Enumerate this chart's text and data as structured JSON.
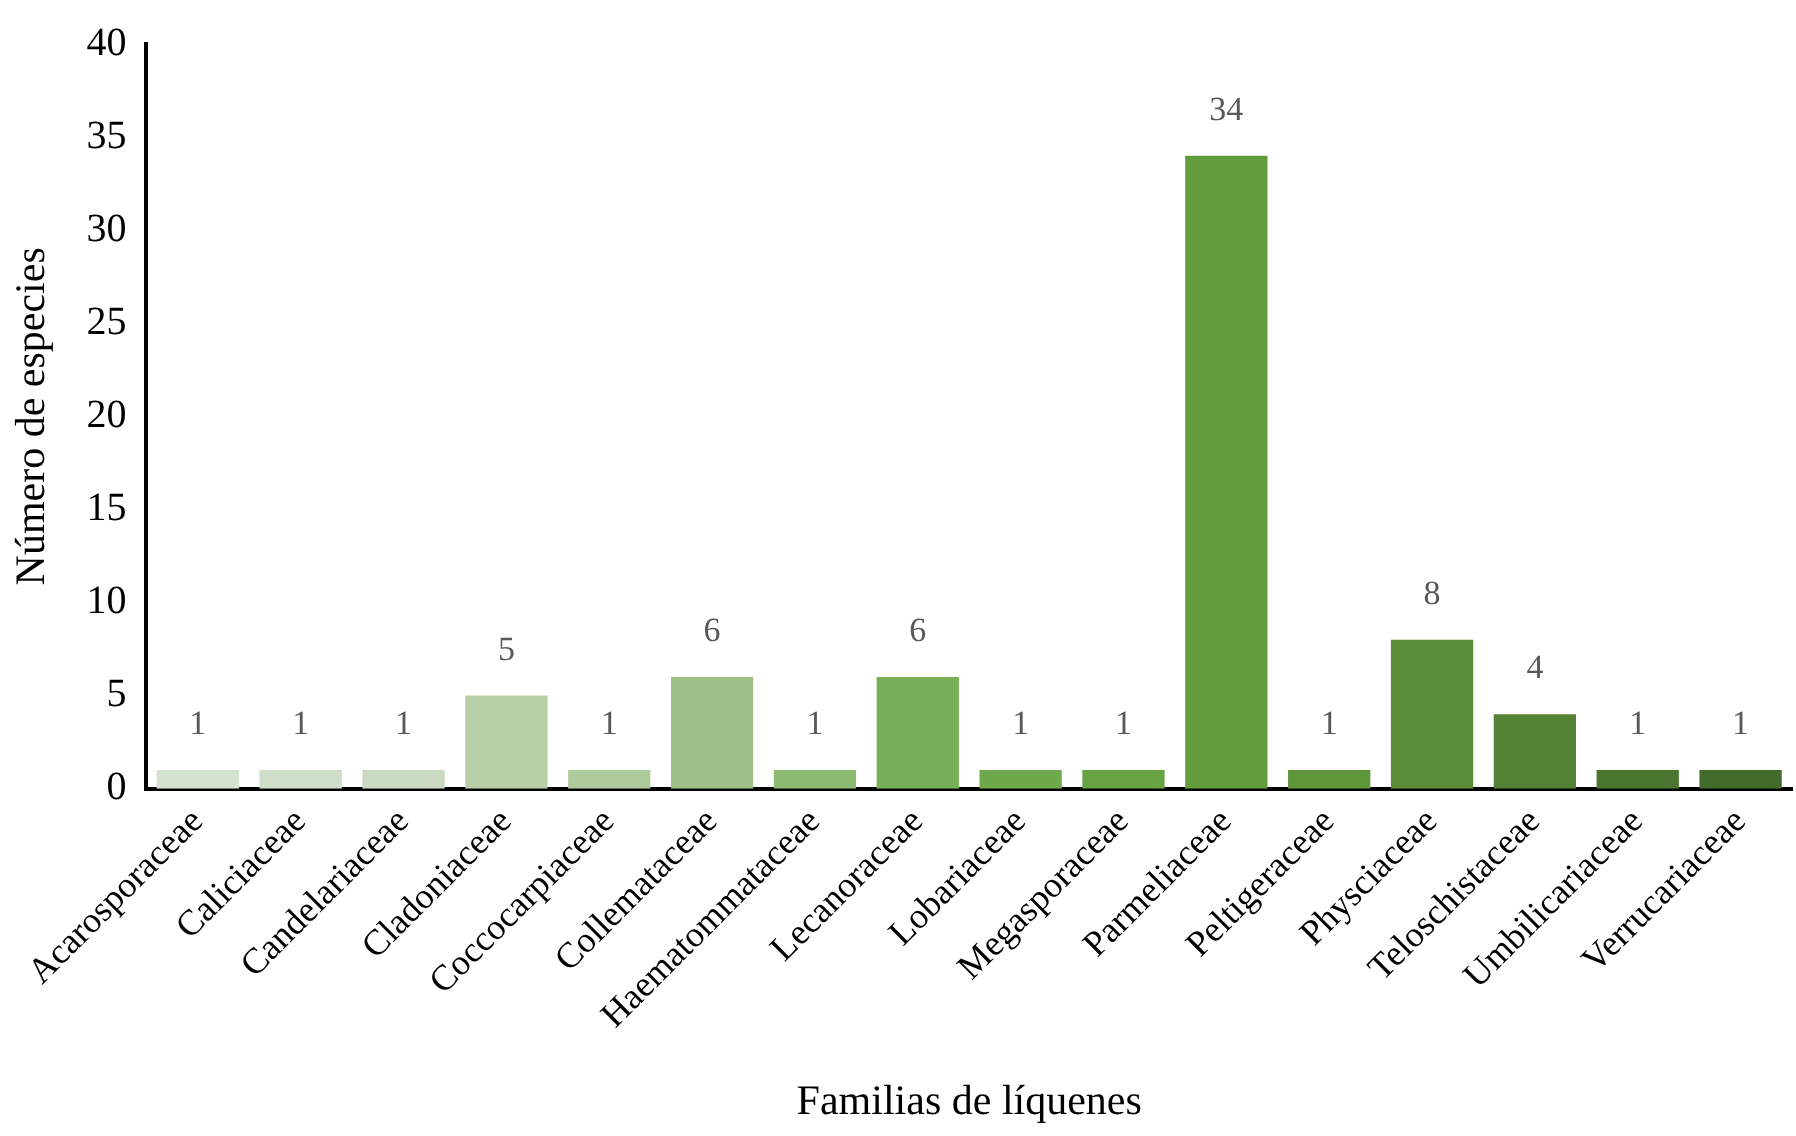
{
  "chart_data": {
    "type": "bar",
    "xlabel": "Familias de líquenes",
    "ylabel": "Número de especies",
    "categories": [
      "Acarosporaceae",
      "Caliciaceae",
      "Candelariaceae",
      "Cladoniaceae",
      "Coccocarpiaceae",
      "Collemataceae",
      "Haematommataceae",
      "Lecanoraceae",
      "Lobariaceae",
      "Megasporaceae",
      "Parmeliaceae",
      "Peltigeraceae",
      "Physciaceae",
      "Teloschistaceae",
      "Umbilicariaceae",
      "Verrucariaceae"
    ],
    "values": [
      1,
      1,
      1,
      5,
      1,
      6,
      1,
      6,
      1,
      1,
      34,
      1,
      8,
      4,
      1,
      1
    ],
    "colors": [
      "#d5e2cf",
      "#cfdec8",
      "#c9dac1",
      "#b8d0a8",
      "#aecb9c",
      "#9cc087",
      "#8cba73",
      "#78b057",
      "#6eaa4c",
      "#68a343",
      "#629c3c",
      "#5e9639",
      "#5a8c36",
      "#548234",
      "#4a7630",
      "#426a2a"
    ],
    "ylim": [
      0,
      40
    ],
    "yticks": [
      0,
      5,
      10,
      15,
      20,
      25,
      30,
      35,
      40
    ],
    "grid": false,
    "legend": false,
    "data_labels": true
  }
}
